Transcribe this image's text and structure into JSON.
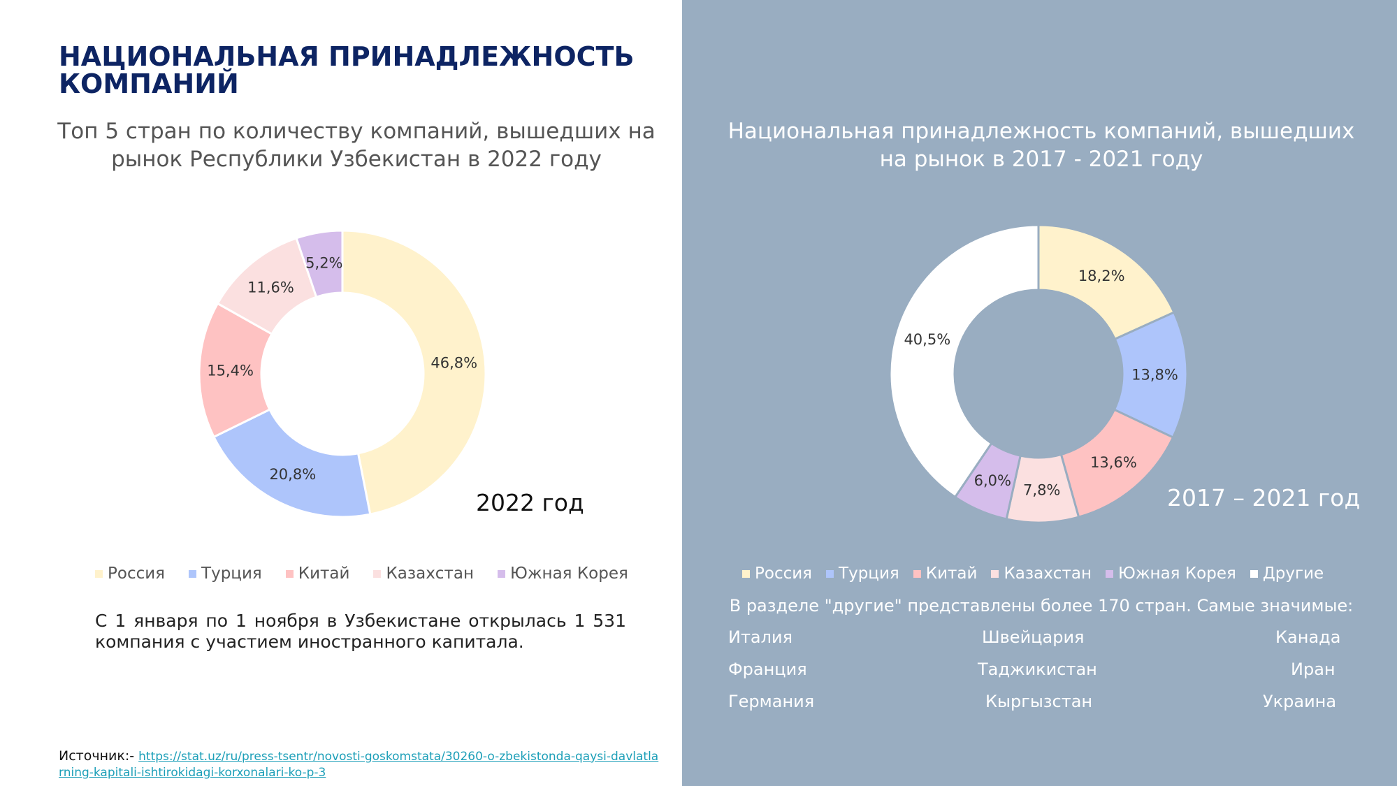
{
  "title": "НАЦИОНАЛЬНАЯ ПРИНАДЛЕЖНОСТЬ КОМПАНИЙ",
  "colors": {
    "title": "#0d2463",
    "right_panel": "#99adc1",
    "link": "#1c9fb8"
  },
  "chart_data": [
    {
      "type": "pie",
      "variant": "donut",
      "title": "Топ 5 стран по количеству компаний, вышедших на рынок Республики Узбекистан в 2022 году",
      "center_label": "2022 год",
      "legend_position": "bottom",
      "slices": [
        {
          "name": "Россия",
          "value": 46.8,
          "label": "46,8%",
          "color": "#fff2cc"
        },
        {
          "name": "Турция",
          "value": 20.8,
          "label": "20,8%",
          "color": "#aec5fb"
        },
        {
          "name": "Китай",
          "value": 15.4,
          "label": "15,4%",
          "color": "#fec2c2"
        },
        {
          "name": "Казахстан",
          "value": 11.6,
          "label": "11,6%",
          "color": "#fbe0e0"
        },
        {
          "name": "Южная Корея",
          "value": 5.2,
          "label": "5,2%",
          "color": "#d5bdeb"
        }
      ]
    },
    {
      "type": "pie",
      "variant": "donut",
      "title": "Национальная принадлежность компаний, вышедших на рынок в 2017 - 2021 году",
      "center_label": "2017 – 2021 год",
      "legend_position": "bottom",
      "slices": [
        {
          "name": "Россия",
          "value": 18.2,
          "label": "18,2%",
          "color": "#fff2cc"
        },
        {
          "name": "Турция",
          "value": 13.8,
          "label": "13,8%",
          "color": "#aec5fb"
        },
        {
          "name": "Китай",
          "value": 13.6,
          "label": "13,6%",
          "color": "#fec2c2"
        },
        {
          "name": "Казахстан",
          "value": 7.8,
          "label": "7,8%",
          "color": "#fbe0e0"
        },
        {
          "name": "Южная Корея",
          "value": 6.0,
          "label": "6,0%",
          "color": "#d5bdeb"
        },
        {
          "name": "Другие",
          "value": 40.5,
          "label": "40,5%",
          "color": "#ffffff"
        }
      ]
    }
  ],
  "note": "С 1 января по 1 ноября в Узбекистане открылась 1 531 компания с участием иностранного капитала.",
  "others": {
    "intro": "В разделе \"другие\" представлены  более 170 стран. Самые значимые:",
    "countries": [
      "Италия",
      "Швейцария",
      "Канада",
      "Франция",
      "Таджикистан",
      "Иран",
      "Германия",
      "Кыргызстан",
      "Украина"
    ]
  },
  "source": {
    "label": "Источник:- ",
    "url": "https://stat.uz/ru/press-tsentr/novosti-goskomstata/30260-o-zbekistonda-qaysi-davlatlarning-kapitali-ishtirokidagi-korxonalari-ko-p-3"
  }
}
